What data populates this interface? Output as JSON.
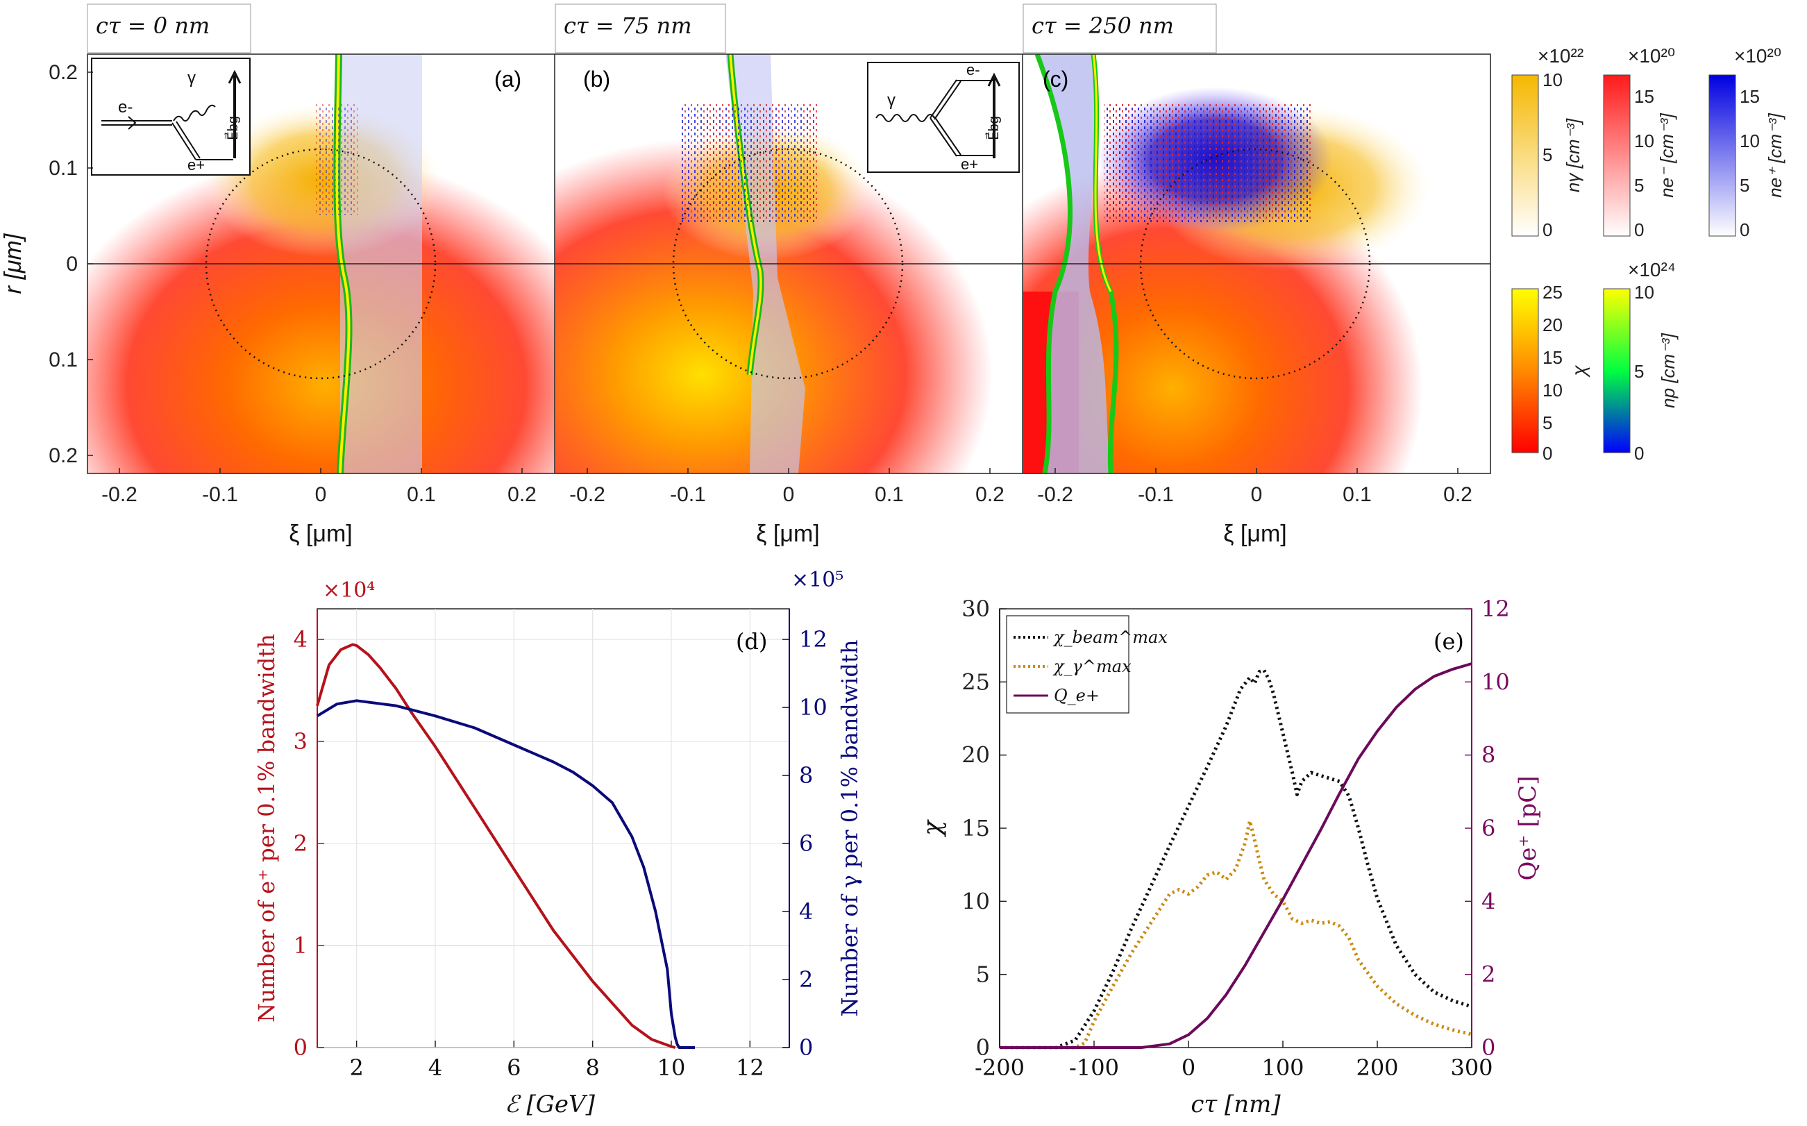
{
  "colors": {
    "red_axis": "#b5121b",
    "blue_axis": "#0a0a7a",
    "purple_axis": "#7a0a5e",
    "chi_beam": "#111111",
    "chi_gamma": "#cc8a10",
    "Q_line": "#6b0a5a",
    "photon": "#f5b800",
    "electron": "#e8232a",
    "positron": "#1a1ad6"
  },
  "top_panels": {
    "ylabel": "r [μm]",
    "xlabel": "ξ [μm]",
    "x_ticks": [
      "-0.2",
      "-0.1",
      "0",
      "0.1",
      "0.2"
    ],
    "y_ticks": [
      "0.2",
      "0.1",
      "0",
      "0.1",
      "0.2"
    ],
    "panels": [
      {
        "title": "cτ = 0 nm",
        "tag": "(a)"
      },
      {
        "title": "cτ = 75 nm",
        "tag": "(b)"
      },
      {
        "title": "cτ = 250 nm",
        "tag": "(c)"
      }
    ],
    "inset_a": {
      "electron": "e-",
      "photon": "γ",
      "positron": "e+",
      "field": "E⃗bg"
    },
    "inset_b": {
      "photon": "γ",
      "electron": "e-",
      "positron": "e+",
      "field": "E⃗bg"
    }
  },
  "colorbars": [
    {
      "exponent": "×10²²",
      "ticks": [
        "10",
        "5",
        "0"
      ],
      "label": "nγ [cm⁻³]"
    },
    {
      "exponent": "×10²⁰",
      "ticks": [
        "15",
        "10",
        "5",
        "0"
      ],
      "label": "ne⁻ [cm⁻³]"
    },
    {
      "exponent": "×10²⁰",
      "ticks": [
        "15",
        "10",
        "5",
        "0"
      ],
      "label": "ne⁺ [cm⁻³]"
    },
    {
      "exponent": "",
      "ticks": [
        "25",
        "20",
        "15",
        "10",
        "5",
        "0"
      ],
      "label": "χ"
    },
    {
      "exponent": "×10²⁴",
      "ticks": [
        "10",
        "5",
        "0"
      ],
      "label": "np [cm⁻³]"
    }
  ],
  "chart_data": [
    {
      "id": "d",
      "type": "line",
      "tag": "(d)",
      "xlabel": "ℰ [GeV]",
      "ylabel_left": "Number of e⁺ per 0.1% bandwidth",
      "ylabel_right": "Number of γ per 0.1% bandwidth",
      "left_exponent": "×10⁴",
      "right_exponent": "×10⁵",
      "xlim": [
        1,
        13
      ],
      "ylim_left": [
        0,
        4.3
      ],
      "ylim_right": [
        0,
        12.9
      ],
      "x_ticks": [
        "2",
        "4",
        "6",
        "8",
        "10",
        "12"
      ],
      "y_ticks_left": [
        "0",
        "1",
        "2",
        "3",
        "4"
      ],
      "y_ticks_right": [
        "0",
        "2",
        "4",
        "6",
        "8",
        "10",
        "12"
      ],
      "series": [
        {
          "name": "e+",
          "axis": "left",
          "x": [
            1.0,
            1.3,
            1.6,
            1.9,
            2.0,
            2.3,
            2.6,
            3.0,
            3.4,
            4.0,
            5.0,
            6.0,
            7.0,
            8.0,
            9.0,
            9.5,
            10.0,
            10.1
          ],
          "y": [
            3.35,
            3.75,
            3.9,
            3.95,
            3.94,
            3.85,
            3.72,
            3.52,
            3.28,
            2.95,
            2.35,
            1.75,
            1.15,
            0.65,
            0.22,
            0.08,
            0.01,
            0.0
          ]
        },
        {
          "name": "γ",
          "axis": "right",
          "x": [
            1.0,
            1.5,
            2.0,
            3.0,
            4.0,
            5.0,
            6.0,
            7.0,
            7.5,
            8.0,
            8.5,
            9.0,
            9.3,
            9.6,
            9.9,
            10.0,
            10.1,
            10.15,
            10.2,
            10.6
          ],
          "y": [
            9.75,
            10.1,
            10.2,
            10.05,
            9.75,
            9.4,
            8.9,
            8.4,
            8.1,
            7.7,
            7.2,
            6.2,
            5.3,
            4.0,
            2.3,
            1.0,
            0.3,
            0.1,
            0.0,
            0.0
          ]
        }
      ]
    },
    {
      "id": "e",
      "type": "line",
      "tag": "(e)",
      "xlabel": "cτ [nm]",
      "ylabel_left": "χ",
      "ylabel_right": "Qe⁺ [pC]",
      "xlim": [
        -200,
        300
      ],
      "ylim_left": [
        0,
        30
      ],
      "ylim_right": [
        0,
        12
      ],
      "x_ticks": [
        "-200",
        "-100",
        "0",
        "100",
        "200",
        "300"
      ],
      "y_ticks_left": [
        "0",
        "5",
        "10",
        "15",
        "20",
        "25",
        "30"
      ],
      "y_ticks_right": [
        "0",
        "2",
        "4",
        "6",
        "8",
        "10",
        "12"
      ],
      "legend": {
        "position": "top-left",
        "entries": [
          "χ_beam^max",
          "χ_γ^max",
          "Q_e+"
        ]
      },
      "series": [
        {
          "name": "χ_beam^max",
          "axis": "left",
          "style": "dotted",
          "x": [
            -200,
            -140,
            -120,
            -100,
            -80,
            -60,
            -40,
            -20,
            0,
            20,
            40,
            55,
            65,
            70,
            75,
            80,
            85,
            90,
            100,
            110,
            115,
            120,
            130,
            140,
            150,
            160,
            170,
            180,
            190,
            200,
            220,
            240,
            260,
            280,
            300
          ],
          "y": [
            0,
            0,
            0.5,
            2.5,
            5.2,
            8.2,
            11.0,
            13.8,
            16.5,
            19.2,
            22.0,
            24.5,
            25.3,
            24.9,
            25.7,
            25.8,
            25.2,
            24.2,
            21.5,
            18.8,
            17.3,
            18.2,
            18.8,
            18.6,
            18.4,
            18.2,
            17.2,
            15.0,
            12.5,
            10.2,
            7.0,
            5.0,
            3.8,
            3.2,
            2.8
          ]
        },
        {
          "name": "χ_γ^max",
          "axis": "left",
          "style": "dotted",
          "x": [
            -200,
            -120,
            -110,
            -100,
            -80,
            -60,
            -40,
            -20,
            -10,
            0,
            10,
            20,
            30,
            40,
            50,
            60,
            65,
            70,
            75,
            80,
            90,
            100,
            110,
            120,
            130,
            140,
            150,
            160,
            170,
            180,
            200,
            220,
            240,
            260,
            280,
            300
          ],
          "y": [
            0,
            0,
            0.3,
            1.8,
            4.2,
            6.5,
            8.5,
            10.5,
            10.8,
            10.5,
            11.0,
            11.8,
            12.0,
            11.5,
            12.2,
            14.0,
            15.5,
            14.2,
            12.8,
            11.5,
            10.5,
            10.0,
            8.8,
            8.5,
            8.7,
            8.5,
            8.6,
            8.3,
            7.5,
            6.0,
            4.2,
            3.0,
            2.2,
            1.6,
            1.2,
            0.9
          ]
        },
        {
          "name": "Q_e+",
          "axis": "right",
          "style": "solid",
          "x": [
            -200,
            -50,
            -20,
            0,
            20,
            40,
            60,
            80,
            100,
            120,
            140,
            160,
            180,
            200,
            220,
            240,
            260,
            280,
            300
          ],
          "y": [
            0,
            0,
            0.1,
            0.35,
            0.8,
            1.45,
            2.25,
            3.15,
            4.05,
            5.0,
            5.95,
            6.95,
            7.9,
            8.65,
            9.3,
            9.8,
            10.15,
            10.35,
            10.5
          ]
        }
      ]
    }
  ]
}
